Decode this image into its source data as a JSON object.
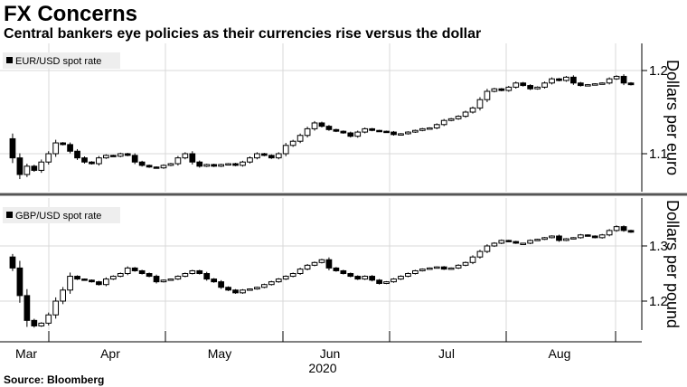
{
  "header": {
    "title": "FX Concerns",
    "subtitle": "Central bankers eye policies as their currencies rise versus the dollar"
  },
  "footer": {
    "source": "Source: Bloomberg"
  },
  "colors": {
    "up": "#ffffff",
    "down": "#000000",
    "wick": "#000000",
    "grid": "#d9d9d9",
    "divider": "#555555"
  },
  "chart_data": [
    {
      "type": "line",
      "legend": "EUR/USD spot rate",
      "ylabel": "Dollars per euro",
      "ylim": [
        1.053,
        1.215
      ],
      "yticks": [
        "1.1",
        "1.2"
      ],
      "x_tick_labels": [
        "Mar",
        "Apr",
        "May",
        "Jun",
        "Jul",
        "Aug"
      ],
      "x_year_label": "2020",
      "values": [
        1.118,
        1.095,
        1.075,
        1.085,
        1.08,
        1.09,
        1.1,
        1.113,
        1.111,
        1.103,
        1.095,
        1.09,
        1.088,
        1.095,
        1.098,
        1.097,
        1.1,
        1.098,
        1.09,
        1.086,
        1.084,
        1.083,
        1.086,
        1.088,
        1.095,
        1.1,
        1.09,
        1.085,
        1.087,
        1.085,
        1.087,
        1.088,
        1.086,
        1.09,
        1.095,
        1.1,
        1.098,
        1.095,
        1.1,
        1.11,
        1.115,
        1.122,
        1.13,
        1.137,
        1.133,
        1.129,
        1.127,
        1.125,
        1.121,
        1.126,
        1.13,
        1.128,
        1.127,
        1.126,
        1.123,
        1.124,
        1.126,
        1.128,
        1.13,
        1.131,
        1.135,
        1.14,
        1.142,
        1.145,
        1.15,
        1.155,
        1.165,
        1.175,
        1.178,
        1.176,
        1.18,
        1.185,
        1.182,
        1.178,
        1.18,
        1.185,
        1.19,
        1.188,
        1.192,
        1.185,
        1.182,
        1.183,
        1.184,
        1.185,
        1.19,
        1.193,
        1.185,
        1.183
      ]
    },
    {
      "type": "line",
      "legend": "GBP/USD spot rate",
      "ylabel": "Dollars per pound",
      "ylim": [
        1.145,
        1.35
      ],
      "yticks": [
        "1.2",
        "1.3"
      ],
      "x_tick_labels": [
        "Mar",
        "Apr",
        "May",
        "Jun",
        "Jul",
        "Aug"
      ],
      "x_year_label": "2020",
      "values": [
        1.28,
        1.26,
        1.21,
        1.165,
        1.155,
        1.16,
        1.175,
        1.2,
        1.22,
        1.245,
        1.24,
        1.238,
        1.235,
        1.23,
        1.24,
        1.245,
        1.25,
        1.26,
        1.255,
        1.25,
        1.245,
        1.235,
        1.238,
        1.24,
        1.245,
        1.25,
        1.255,
        1.25,
        1.24,
        1.235,
        1.225,
        1.22,
        1.215,
        1.22,
        1.222,
        1.225,
        1.23,
        1.235,
        1.24,
        1.245,
        1.25,
        1.258,
        1.265,
        1.27,
        1.275,
        1.26,
        1.255,
        1.25,
        1.245,
        1.24,
        1.245,
        1.238,
        1.232,
        1.235,
        1.24,
        1.245,
        1.25,
        1.255,
        1.258,
        1.26,
        1.262,
        1.258,
        1.26,
        1.265,
        1.27,
        1.28,
        1.29,
        1.3,
        1.305,
        1.31,
        1.308,
        1.305,
        1.305,
        1.31,
        1.312,
        1.315,
        1.318,
        1.31,
        1.313,
        1.315,
        1.32,
        1.318,
        1.315,
        1.32,
        1.328,
        1.335,
        1.328,
        1.325
      ]
    }
  ]
}
